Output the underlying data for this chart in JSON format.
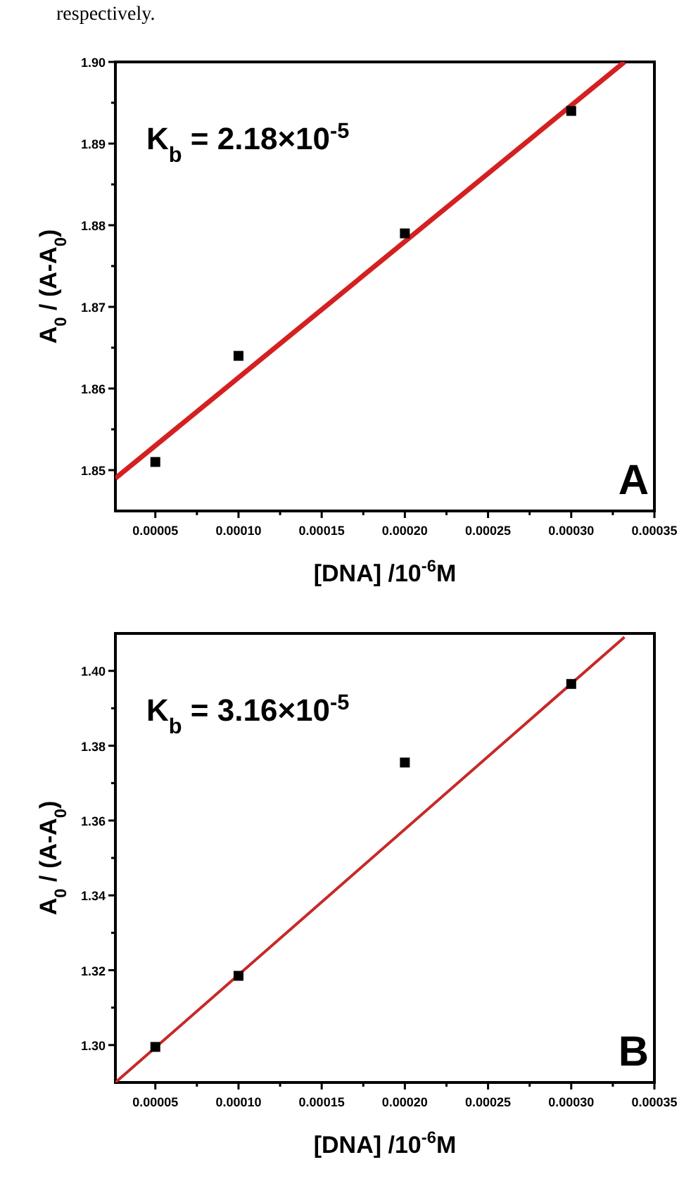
{
  "chart_data": [
    {
      "type": "scatter",
      "xlabel": "[DNA] /10$^{-6}$M",
      "ylabel": "A$_{0}$ / (A-A$_{0}$)",
      "marker": "square",
      "grid": false,
      "annotations": [
        "K$_{b}$ = 2.18×10$^{-5}$",
        "A",
        "respectively."
      ],
      "xlim": [
        2.6e-05,
        0.00035
      ],
      "ylim": [
        1.845,
        1.9
      ],
      "xticks": [
        {
          "value": 5e-05,
          "label": "0.00005"
        },
        {
          "value": 7.5e-05,
          "label": null
        },
        {
          "value": 0.0001,
          "label": "0.00010"
        },
        {
          "value": 0.000125,
          "label": null
        },
        0.00015,
        {
          "value": 0.000175,
          "label": null
        },
        {
          "value": 0.0002,
          "label": "0.00020"
        },
        {
          "value": 0.000225,
          "label": null
        },
        0.00025,
        {
          "value": 0.000275,
          "label": null
        },
        {
          "value": 0.0003,
          "label": "0.00030"
        },
        {
          "value": 0.000325,
          "label": null
        },
        0.00035
      ],
      "yticks": [
        1.85,
        {
          "value": 1.855,
          "label": null
        },
        1.86,
        {
          "value": 1.865,
          "label": null
        },
        1.87,
        {
          "value": 1.875,
          "label": null
        },
        1.88,
        {
          "value": 1.885,
          "label": null
        },
        1.89,
        {
          "value": 1.895,
          "label": null
        },
        {
          "value": 1.9,
          "label": "1.90"
        }
      ],
      "series": [
        {
          "color": "#000000",
          "x": [
            5e-05,
            0.0001,
            0.0002,
            0.0003
          ],
          "values": [
            1.851,
            1.864,
            1.879,
            1.894
          ]
        },
        {
          "type": "line",
          "color": "#d42020",
          "line_style": "solid",
          "marker": "none",
          "x": [
            2.6e-05,
            0.000332
          ],
          "values": [
            1.849,
            1.9
          ]
        }
      ]
    },
    {
      "type": "scatter",
      "xlabel": "[DNA] /10$^{-6}$M",
      "ylabel": "A$_{0}$ / (A-A$_{0}$)",
      "marker": "square",
      "grid": false,
      "annotations": [
        "K$_{b}$ = 3.16×10$^{-5}$",
        "B"
      ],
      "xlim": [
        2.6e-05,
        0.00035
      ],
      "ylim": [
        1.29,
        1.41
      ],
      "xticks": [
        {
          "value": 5e-05,
          "label": "0.00005"
        },
        {
          "value": 7.5e-05,
          "label": null
        },
        {
          "value": 0.0001,
          "label": "0.00010"
        },
        {
          "value": 0.000125,
          "label": null
        },
        0.00015,
        {
          "value": 0.000175,
          "label": null
        },
        {
          "value": 0.0002,
          "label": "0.00020"
        },
        {
          "value": 0.000225,
          "label": null
        },
        0.00025,
        {
          "value": 0.000275,
          "label": null
        },
        {
          "value": 0.0003,
          "label": "0.00030"
        },
        {
          "value": 0.000325,
          "label": null
        },
        0.00035
      ],
      "yticks": [
        {
          "value": 1.3,
          "label": "1.30"
        },
        {
          "value": 1.31,
          "label": null
        },
        1.32,
        {
          "value": 1.33,
          "label": null
        },
        1.34,
        {
          "value": 1.35,
          "label": null
        },
        1.36,
        {
          "value": 1.37,
          "label": null
        },
        1.38,
        {
          "value": 1.39,
          "label": null
        },
        {
          "value": 1.4,
          "label": "1.40"
        }
      ],
      "series": [
        {
          "color": "#000000",
          "x": [
            5e-05,
            0.0001,
            0.0002,
            0.0003
          ],
          "values": [
            1.2995,
            1.3185,
            1.3755,
            1.3965
          ]
        },
        {
          "type": "line",
          "color": "#c82828",
          "line_style": "solid",
          "marker": "none",
          "x": [
            2.6e-05,
            0.000332
          ],
          "values": [
            1.29,
            1.409
          ]
        }
      ]
    }
  ]
}
